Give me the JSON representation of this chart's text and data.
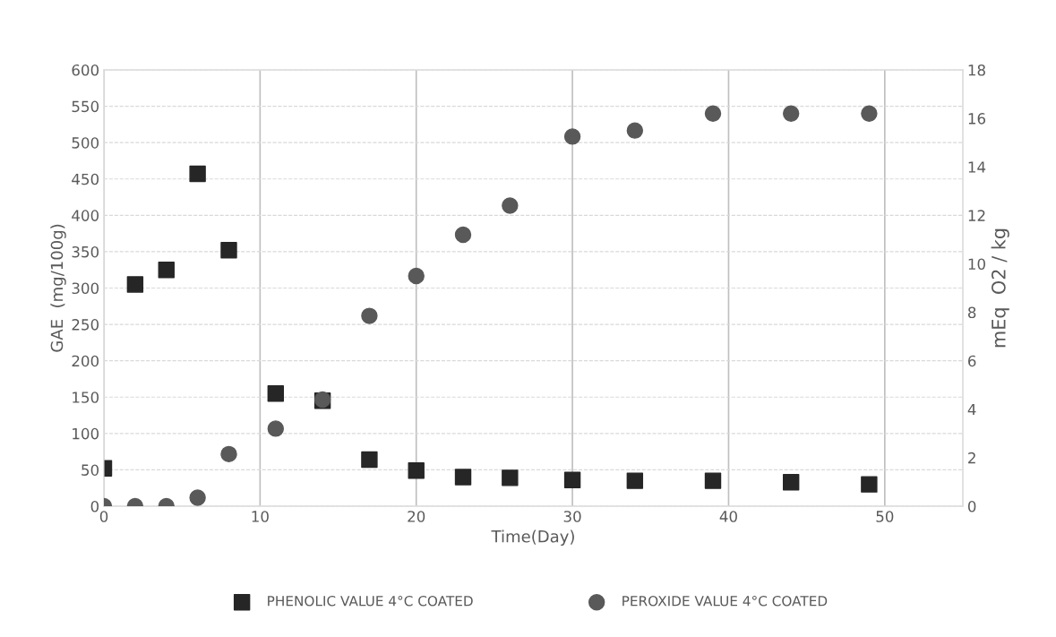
{
  "chart_data": {
    "type": "scatter",
    "xlabel": "Time(Day)",
    "ylabel": "GAE  (mg/100g)",
    "y2label": "mEq  O2 / kg",
    "x": [
      0,
      2,
      4,
      6,
      8,
      11,
      14,
      17,
      20,
      23,
      26,
      30,
      34,
      39,
      44,
      49
    ],
    "series": [
      {
        "name": "PHENOLIC VALUE 4°C COATED",
        "color": "#262626",
        "marker": "square",
        "values": [
          52,
          305,
          325,
          457,
          352,
          155,
          145,
          64,
          49,
          40,
          39,
          36,
          35,
          35,
          33,
          30
        ]
      },
      {
        "name": "PEROXIDE VALUE 4°C COATED",
        "color": "#595959",
        "marker": "circle",
        "axis": "y2",
        "values": [
          0,
          0,
          0,
          0.35,
          2.15,
          3.2,
          4.4,
          7.85,
          9.5,
          11.2,
          12.4,
          15.25,
          15.5,
          16.2,
          16.2,
          16.2
        ]
      }
    ],
    "xlim": [
      0,
      55
    ],
    "xticks": [
      0,
      10,
      20,
      30,
      40,
      50
    ],
    "ylim": [
      0,
      600
    ],
    "yticks": [
      0,
      50,
      100,
      150,
      200,
      250,
      300,
      350,
      400,
      450,
      500,
      550,
      600
    ],
    "y2lim": [
      0,
      18
    ],
    "y2ticks": [
      0,
      2,
      4,
      6,
      8,
      10,
      12,
      14,
      16,
      18
    ],
    "grid": true,
    "legend": "bottom"
  }
}
